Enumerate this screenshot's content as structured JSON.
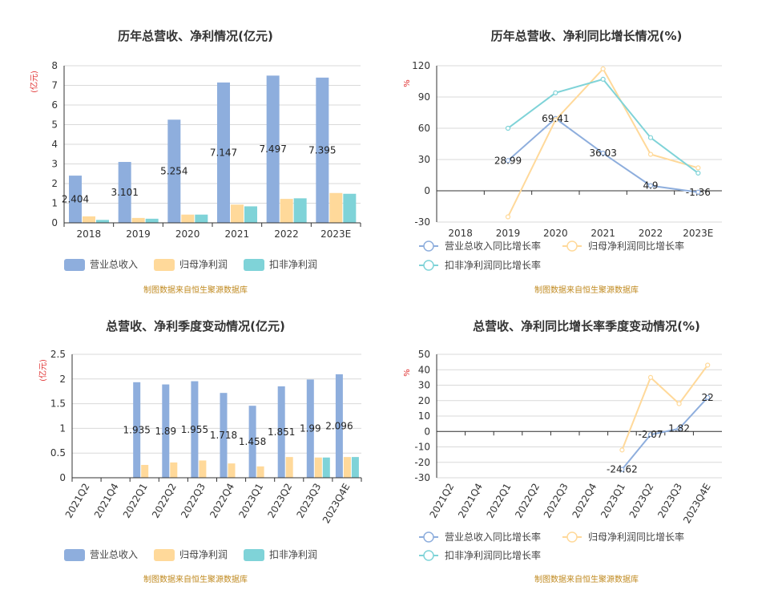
{
  "colors": {
    "revenue": "#8eaedd",
    "parent_profit": "#ffd99a",
    "deducted_profit": "#7fd3d8",
    "grid": "#d9d9d9",
    "axis": "#333333"
  },
  "chart_data": [
    {
      "type": "bar",
      "title": "历年总营收、净利情况(亿元)",
      "ylabel": "(亿元)",
      "categories": [
        "2018",
        "2019",
        "2020",
        "2021",
        "2022",
        "2023E"
      ],
      "ylim": [
        0,
        8
      ],
      "yticks": [
        "0",
        "1",
        "2",
        "3",
        "4",
        "5",
        "6",
        "7",
        "8"
      ],
      "series": [
        {
          "name": "营业总收入",
          "values": [
            2.404,
            3.101,
            5.254,
            7.147,
            7.497,
            7.395
          ]
        },
        {
          "name": "归母净利润",
          "values": [
            0.33,
            0.25,
            0.42,
            0.93,
            1.22,
            1.52
          ]
        },
        {
          "name": "扣非净利润",
          "values": [
            0.15,
            0.21,
            0.42,
            0.84,
            1.25,
            1.48
          ]
        }
      ],
      "data_labels": [
        "2.404",
        "3.101",
        "5.254",
        "7.147",
        "7.497",
        "7.395"
      ],
      "source": "制图数据来自恒生聚源数据库"
    },
    {
      "type": "line",
      "title": "历年总营收、净利同比增长情况(%)",
      "ylabel": "%",
      "categories": [
        "2018",
        "2019",
        "2020",
        "2021",
        "2022",
        "2023E"
      ],
      "ylim": [
        -30,
        120
      ],
      "yticks": [
        "-30",
        "0",
        "30",
        "60",
        "90",
        "120"
      ],
      "series": [
        {
          "name": "营业总收入同比增长率",
          "values": [
            null,
            28.99,
            69.41,
            36.03,
            4.9,
            -1.36
          ]
        },
        {
          "name": "归母净利润同比增长率",
          "values": [
            null,
            -25,
            68,
            117,
            35,
            22
          ]
        },
        {
          "name": "扣非净利润同比增长率",
          "values": [
            null,
            60,
            94,
            107,
            51,
            17
          ]
        }
      ],
      "data_labels": [
        "",
        "28.99",
        "69.41",
        "36.03",
        "4.9",
        "-1.36"
      ],
      "source": "制图数据来自恒生聚源数据库"
    },
    {
      "type": "bar",
      "title": "总营收、净利季度变动情况(亿元)",
      "ylabel": "(亿元)",
      "categories": [
        "2021Q2",
        "2021Q4",
        "2022Q1",
        "2022Q2",
        "2022Q3",
        "2022Q4",
        "2023Q1",
        "2023Q2",
        "2023Q3",
        "2023Q4E"
      ],
      "ylim": [
        0,
        2.5
      ],
      "yticks": [
        "0",
        "0.5",
        "1",
        "1.5",
        "2",
        "2.5"
      ],
      "series": [
        {
          "name": "营业总收入",
          "values": [
            null,
            null,
            1.935,
            1.89,
            1.955,
            1.718,
            1.458,
            1.851,
            1.99,
            2.096
          ]
        },
        {
          "name": "归母净利润",
          "values": [
            null,
            null,
            0.26,
            0.31,
            0.35,
            0.29,
            0.23,
            0.42,
            0.41,
            0.42
          ]
        },
        {
          "name": "扣非净利润",
          "values": [
            null,
            null,
            null,
            null,
            null,
            null,
            null,
            null,
            0.41,
            0.42
          ]
        }
      ],
      "data_labels": [
        "",
        "",
        "1.935",
        "1.89",
        "1.955",
        "1.718",
        "1.458",
        "1.851",
        "1.99",
        "2.096"
      ],
      "source": "制图数据来自恒生聚源数据库"
    },
    {
      "type": "line",
      "title": "总营收、净利同比增长率季度变动情况(%)",
      "ylabel": "%",
      "categories": [
        "2021Q2",
        "2021Q4",
        "2022Q1",
        "2022Q2",
        "2022Q3",
        "2022Q4",
        "2023Q1",
        "2023Q2",
        "2023Q3",
        "2023Q4E"
      ],
      "ylim": [
        -30,
        50
      ],
      "yticks": [
        "-30",
        "-20",
        "-10",
        "0",
        "10",
        "20",
        "30",
        "40",
        "50"
      ],
      "series": [
        {
          "name": "营业总收入同比增长率",
          "values": [
            null,
            null,
            null,
            null,
            null,
            null,
            -24.62,
            -2.07,
            1.82,
            22
          ]
        },
        {
          "name": "归母净利润同比增长率",
          "values": [
            null,
            null,
            null,
            null,
            null,
            null,
            -12,
            35,
            18,
            43
          ]
        },
        {
          "name": "扣非净利润同比增长率",
          "values": [
            null,
            null,
            null,
            null,
            null,
            null,
            null,
            null,
            null,
            null
          ]
        }
      ],
      "data_labels": [
        "",
        "",
        "",
        "",
        "",
        "",
        "-24.62",
        "-2.07",
        "1.82",
        "22"
      ],
      "source": "制图数据来自恒生聚源数据库"
    }
  ]
}
